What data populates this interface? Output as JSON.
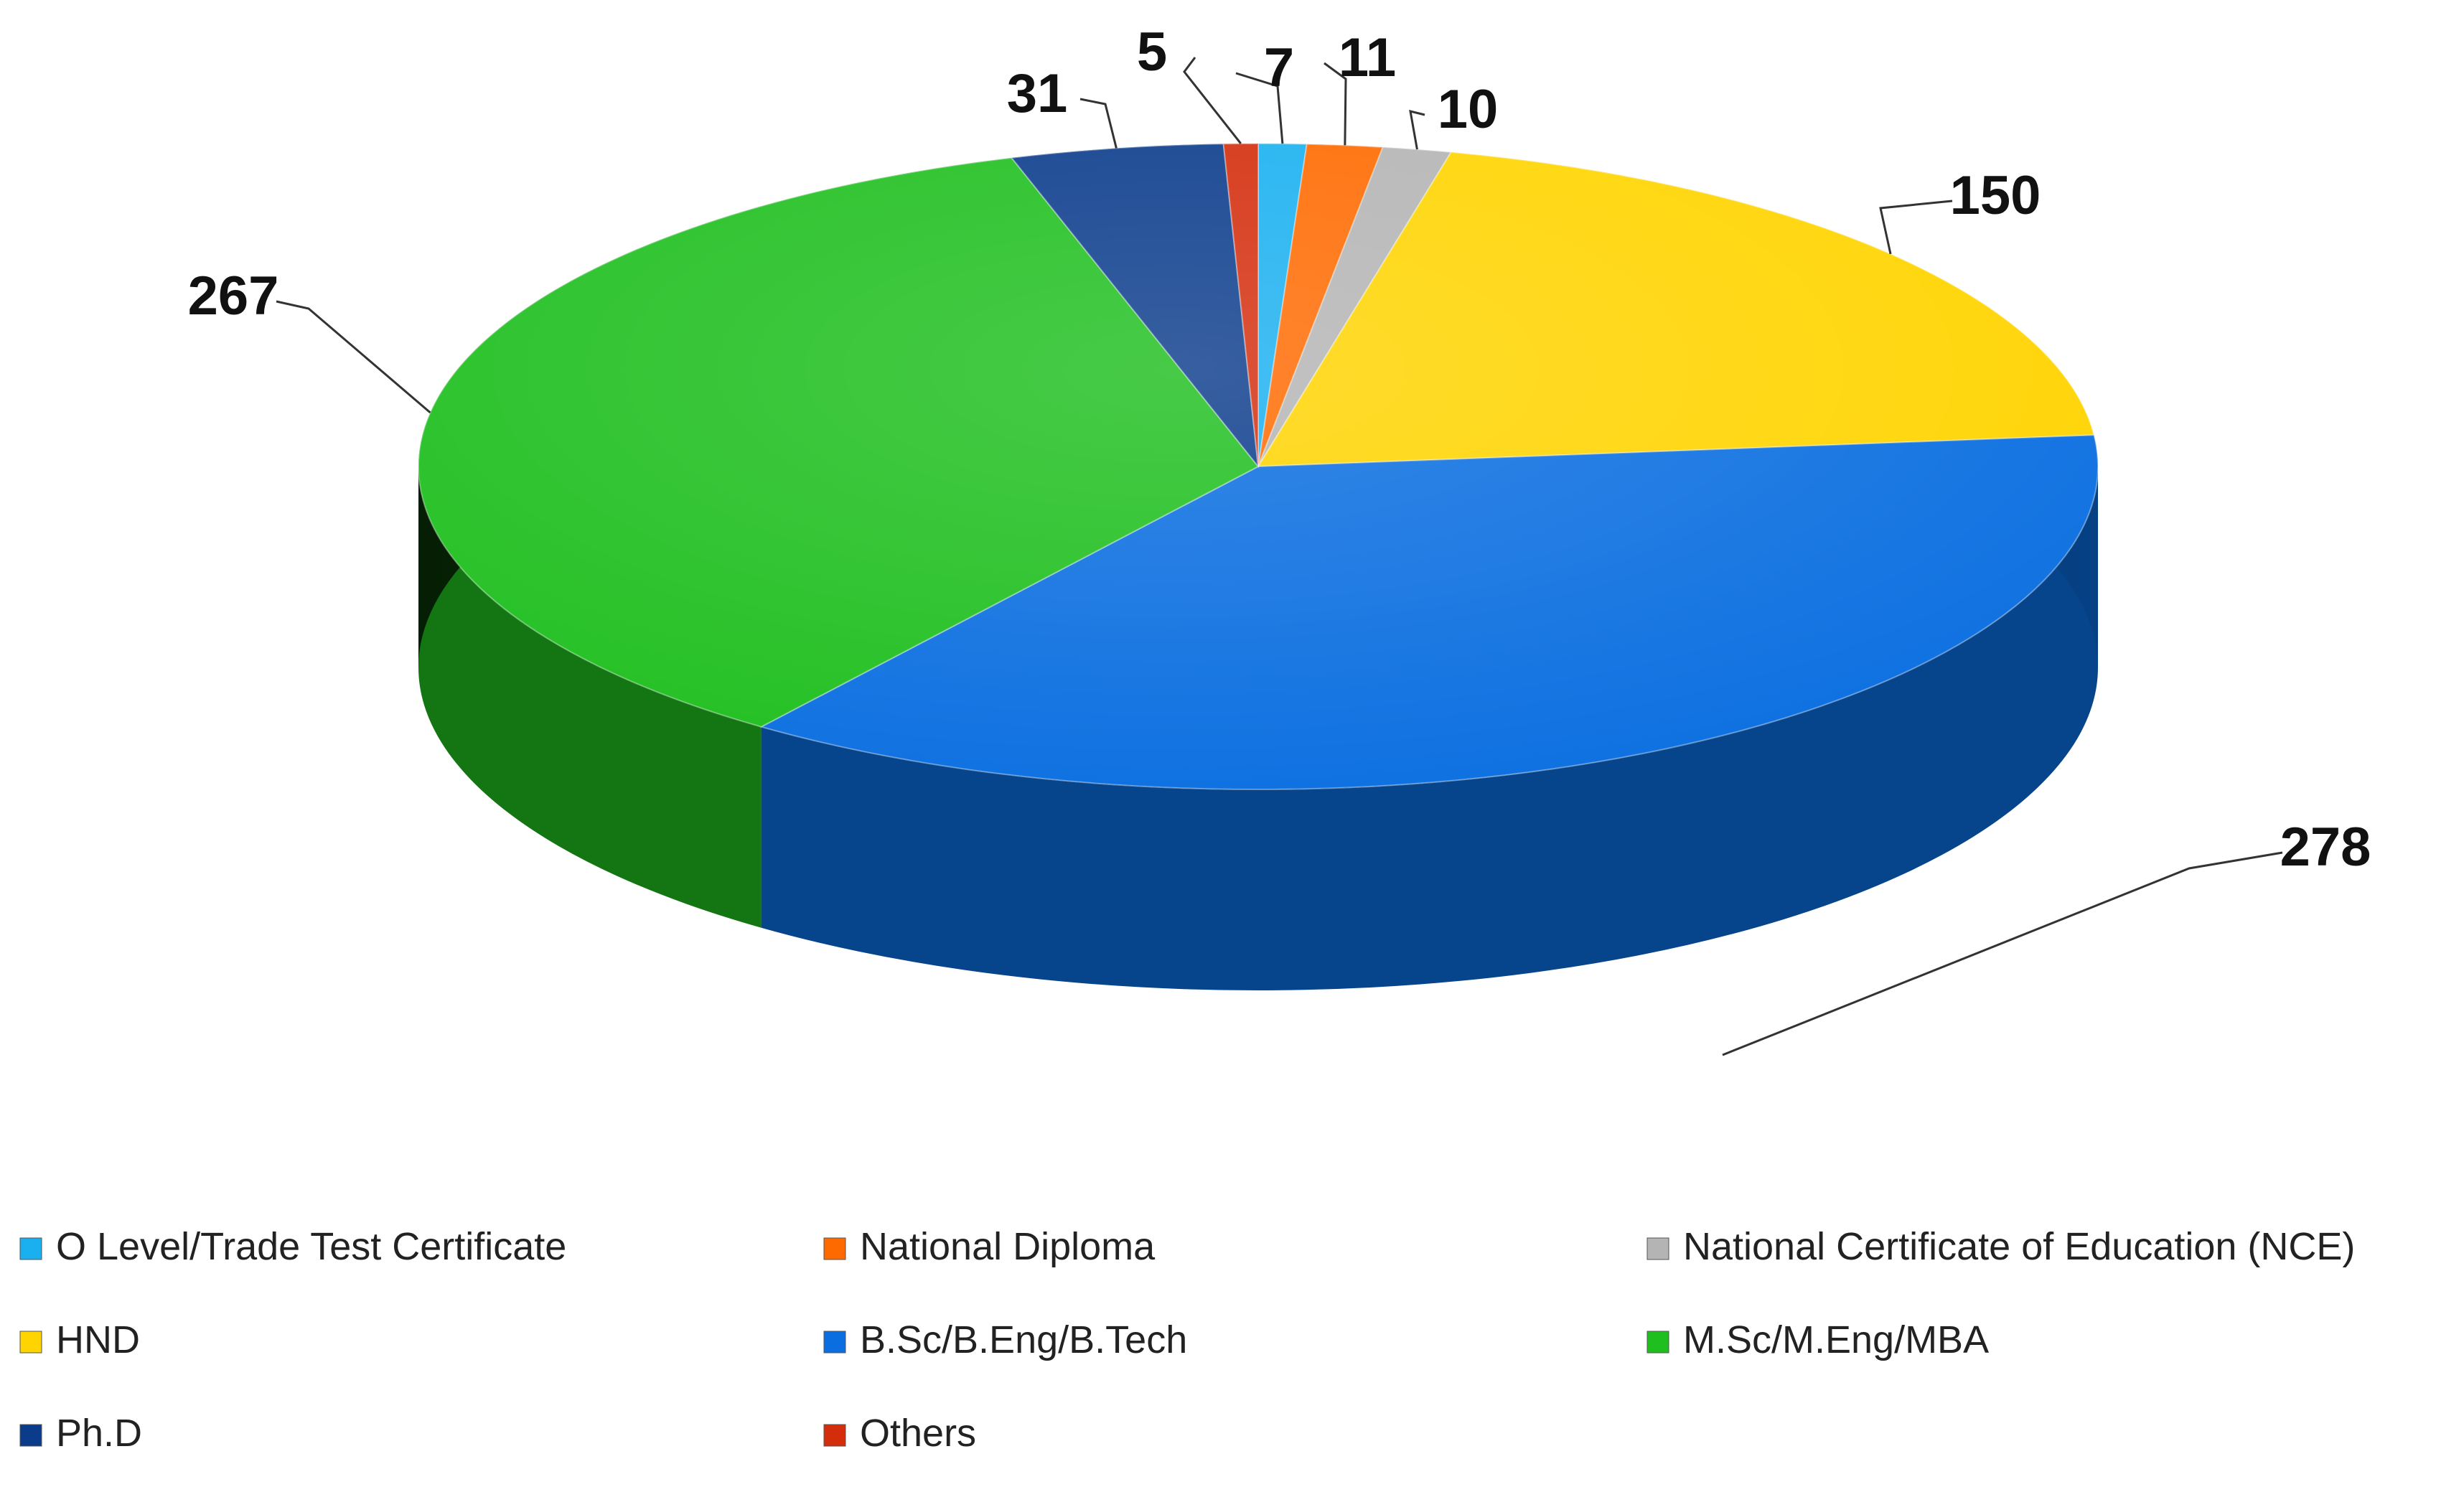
{
  "chart_data": {
    "type": "pie",
    "style": "3d",
    "legend_position": "bottom",
    "slices": [
      {
        "label": "O Level/Trade Test Certificate",
        "value": 7,
        "color": "#1ab0f0"
      },
      {
        "label": "National Diploma",
        "value": 11,
        "color": "#ff6a00"
      },
      {
        "label": "National Certificate of Education (NCE)",
        "value": 10,
        "color": "#b4b4b4"
      },
      {
        "label": "HND",
        "value": 150,
        "color": "#ffd400"
      },
      {
        "label": "B.Sc/B.Eng/B.Tech",
        "value": 278,
        "color": "#0a6ee0"
      },
      {
        "label": "M.Sc/M.Eng/MBA",
        "value": 267,
        "color": "#1fbf1f"
      },
      {
        "label": "Ph.D",
        "value": 31,
        "color": "#0b3c8c"
      },
      {
        "label": "Others",
        "value": 5,
        "color": "#d42d0c"
      }
    ],
    "legend_rows": [
      [
        "O Level/Trade Test Certificate",
        "National Diploma",
        "National Certificate of Education (NCE)"
      ],
      [
        "HND",
        "B.Sc/B.Eng/B.Tech",
        "M.Sc/M.Eng/MBA"
      ],
      [
        "Ph.D",
        "Others"
      ]
    ]
  }
}
